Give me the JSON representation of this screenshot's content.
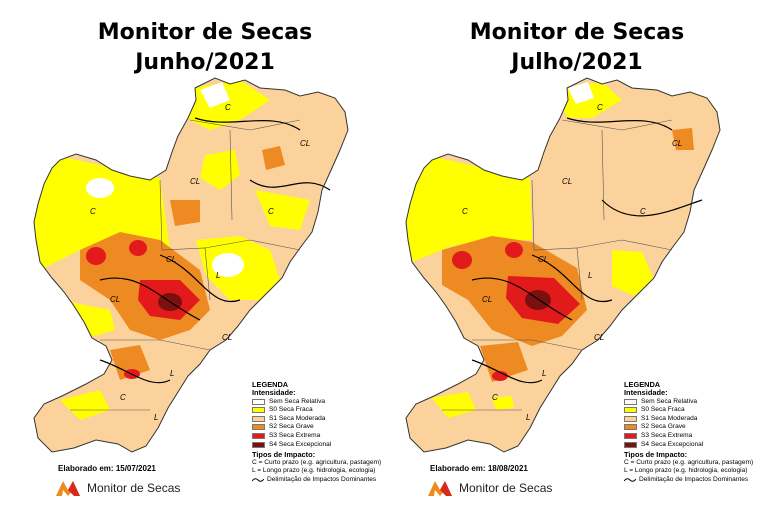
{
  "panels": [
    {
      "title_line1": "Monitor de Secas",
      "title_line2": "Junho/2021",
      "elaborated_label": "Elaborado em:",
      "elaborated_date": "15/07/2021",
      "brand": "Monitor de Secas",
      "map_labels": [
        "C",
        "CL",
        "CL",
        "C",
        "CL",
        "C",
        "L",
        "CL",
        "L",
        "C",
        "CL",
        "L"
      ]
    },
    {
      "title_line1": "Monitor de Secas",
      "title_line2": "Julho/2021",
      "elaborated_label": "Elaborado em:",
      "elaborated_date": "18/08/2021",
      "brand": "Monitor de Secas",
      "map_labels": [
        "C",
        "CL",
        "CL",
        "C",
        "CL",
        "C",
        "L",
        "CL",
        "L",
        "C",
        "CL",
        "L"
      ]
    }
  ],
  "legend": {
    "title": "LEGENDA",
    "intensity_title": "Intensidade:",
    "items": [
      {
        "label": "Sem Seca Relativa",
        "color": "#ffffff"
      },
      {
        "label": "S0 Seca Fraca",
        "color": "#ffff00"
      },
      {
        "label": "S1 Seca Moderada",
        "color": "#fcd29c"
      },
      {
        "label": "S2 Seca Grave",
        "color": "#ed8a22"
      },
      {
        "label": "S3 Seca Extrema",
        "color": "#e31a1c"
      },
      {
        "label": "S4 Seca Excepcional",
        "color": "#7b1010"
      }
    ],
    "impact_title": "Tipos de Impacto:",
    "impact_c": "C = Curto prazo (e.g. agricultura, pastagem)",
    "impact_l": "L = Longo prazo (e.g. hidrologia, ecologia)",
    "impact_line": "Delimitação de Impactos Dominantes"
  },
  "colors": {
    "none": "#ffffff",
    "s0": "#ffff00",
    "s1": "#fcd29c",
    "s2": "#ed8a22",
    "s3": "#e31a1c",
    "s4": "#7b1010",
    "border": "#333333",
    "logo_orange": "#f08a1c",
    "logo_red": "#d9291c"
  }
}
